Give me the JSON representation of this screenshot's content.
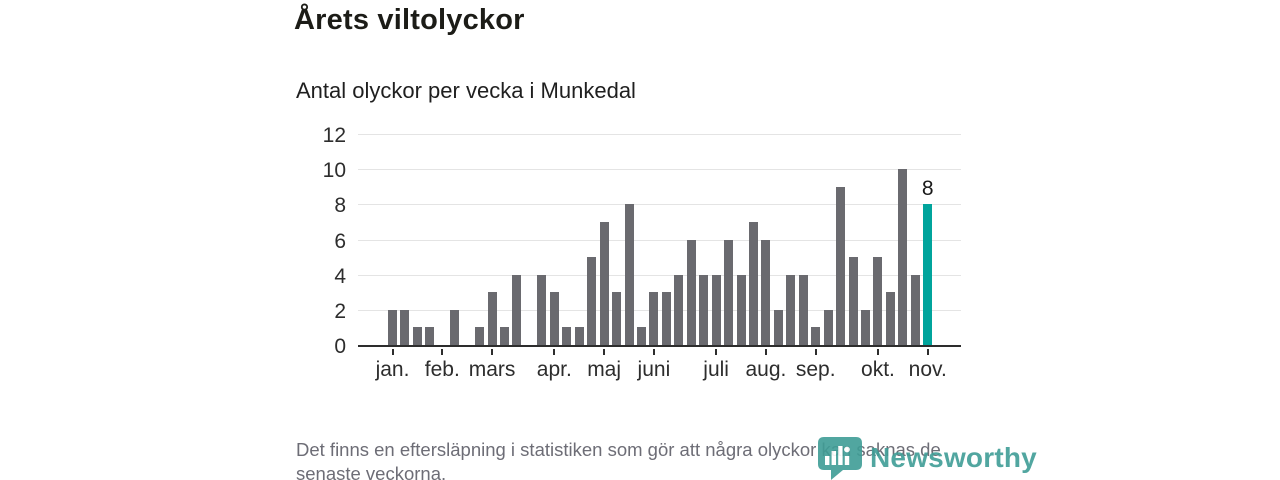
{
  "header": {
    "title": "Årets viltolyckor",
    "subtitle": "Antal olyckor per vecka i Munkedal"
  },
  "chart_data": {
    "type": "bar",
    "title": "Årets viltolyckor",
    "subtitle": "Antal olyckor per vecka i Munkedal",
    "x_unit": "vecka",
    "xlabel": "",
    "ylabel": "",
    "ylim": [
      0,
      12
    ],
    "y_ticks": [
      0,
      2,
      4,
      6,
      8,
      10,
      12
    ],
    "values": [
      2,
      2,
      1,
      1,
      0,
      2,
      0,
      1,
      3,
      1,
      4,
      0,
      4,
      3,
      1,
      1,
      5,
      7,
      3,
      8,
      1,
      3,
      3,
      4,
      6,
      4,
      4,
      6,
      4,
      7,
      6,
      2,
      4,
      4,
      1,
      2,
      9,
      5,
      2,
      5,
      3,
      10,
      4,
      8
    ],
    "month_labels": [
      "jan.",
      "feb.",
      "mars",
      "apr.",
      "maj",
      "juni",
      "juli",
      "aug.",
      "sep.",
      "okt.",
      "nov."
    ],
    "month_tick_week_indices": [
      0,
      4,
      8,
      13,
      17,
      21,
      26,
      30,
      34,
      39,
      43
    ],
    "highlight_index": 43,
    "highlight_value_label": "8",
    "grid": "horizontal",
    "legend": "none",
    "colors": {
      "bar": "#6a6a6f",
      "highlight": "#00a49c",
      "axis": "#2d2d2d",
      "gridline": "#e4e4e4"
    }
  },
  "footer": {
    "note": "Det finns en eftersläpning i statistiken som gör att några olyckor kan saknas de senaste veckorna."
  },
  "logo": {
    "text": "Newsworthy",
    "color": "#3f9d96"
  }
}
